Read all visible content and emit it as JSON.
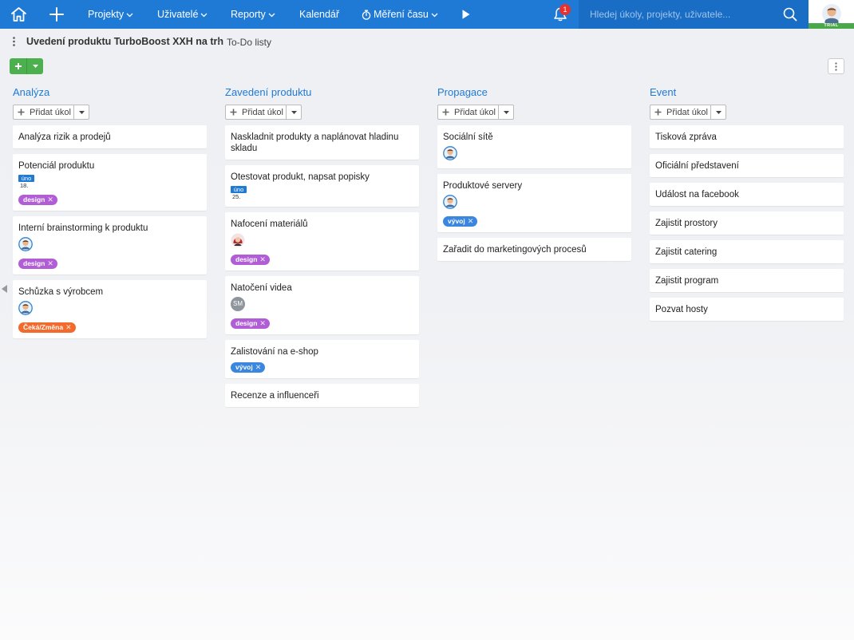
{
  "nav": {
    "projects": "Projekty",
    "users": "Uživatelé",
    "reports": "Reporty",
    "calendar": "Kalendář",
    "time_tracking": "Měření času",
    "notifications_count": "1",
    "search_placeholder": "Hledej úkoly, projekty, uživatele...",
    "trial_label": "TRIAL"
  },
  "breadcrumb": {
    "project": "Uvedení produktu TurboBoost XXH na trh",
    "page": "To-Do listy"
  },
  "colors": {
    "nav_bg": "#1f7ad6",
    "accent": "#1f7ad6",
    "add_button": "#4db04f",
    "tag_design": "#b15ed6",
    "tag_vyvoj": "#3b87e0",
    "tag_ceka": "#f26a2c",
    "badge": "#e8312f"
  },
  "add_task_label": "Přidat úkol",
  "columns": [
    {
      "title": "Analýza",
      "cards": [
        {
          "title": "Analýza rizik a prodejů"
        },
        {
          "title": "Potenciál produktu",
          "due": {
            "month": "úno",
            "day": "18."
          },
          "tags": [
            {
              "label": "design",
              "color": "#b15ed6"
            }
          ]
        },
        {
          "title": "Interní brainstorming k produktu",
          "avatar": "man",
          "tags": [
            {
              "label": "design",
              "color": "#b15ed6"
            }
          ]
        },
        {
          "title": "Schůzka s výrobcem",
          "avatar": "man",
          "tags": [
            {
              "label": "Čeká/Změna",
              "color": "#f26a2c"
            }
          ]
        }
      ]
    },
    {
      "title": "Zavedení produktu",
      "cards": [
        {
          "title": "Naskladnit produkty a naplánovat hladinu skladu"
        },
        {
          "title": "Otestovat produkt, napsat popisky",
          "due": {
            "month": "úno",
            "day": "25."
          }
        },
        {
          "title": "Nafocení materiálů",
          "avatar": "woman",
          "tags": [
            {
              "label": "design",
              "color": "#b15ed6"
            }
          ]
        },
        {
          "title": "Natočení videa",
          "avatar": "initials",
          "avatar_text": "SM",
          "tags": [
            {
              "label": "design",
              "color": "#b15ed6"
            }
          ]
        },
        {
          "title": "Zalistování na e-shop",
          "tags": [
            {
              "label": "vývoj",
              "color": "#3b87e0"
            }
          ]
        },
        {
          "title": "Recenze a influenceři"
        }
      ]
    },
    {
      "title": "Propagace",
      "cards": [
        {
          "title": "Sociální sítě",
          "avatar": "man"
        },
        {
          "title": "Produktové servery",
          "avatar": "man",
          "tags": [
            {
              "label": "vývoj",
              "color": "#3b87e0"
            }
          ]
        },
        {
          "title": "Zařadit do marketingových procesů"
        }
      ]
    },
    {
      "title": "Event",
      "cards": [
        {
          "title": "Tisková zpráva"
        },
        {
          "title": "Oficiální představení"
        },
        {
          "title": "Událost na facebook"
        },
        {
          "title": "Zajistit prostory"
        },
        {
          "title": "Zajistit catering"
        },
        {
          "title": "Zajistit program"
        },
        {
          "title": "Pozvat hosty"
        }
      ]
    }
  ]
}
